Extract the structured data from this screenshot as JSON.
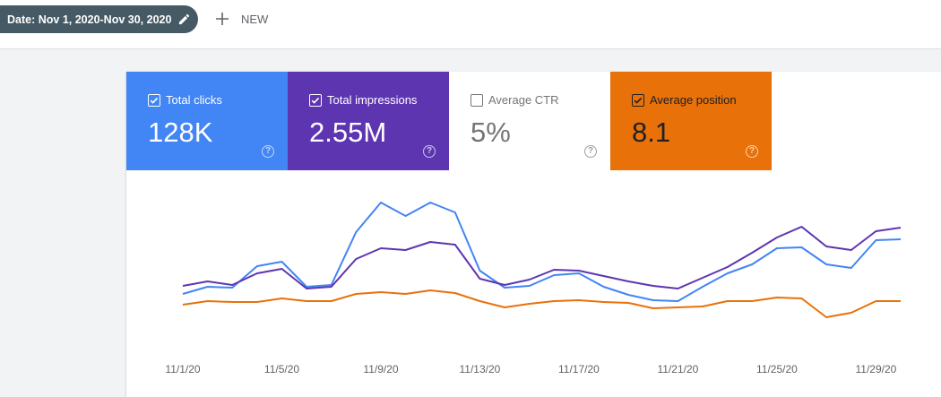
{
  "toolbar": {
    "date_filter": "Date: Nov 1, 2020-Nov 30, 2020",
    "new_label": "NEW"
  },
  "metrics": [
    {
      "id": "clicks",
      "label": "Total clicks",
      "value": "128K",
      "checked": true,
      "color": "#4285f4"
    },
    {
      "id": "impressions",
      "label": "Total impressions",
      "value": "2.55M",
      "checked": true,
      "color": "#5e35b1"
    },
    {
      "id": "ctr",
      "label": "Average CTR",
      "value": "5%",
      "checked": false,
      "color": "#ffffff"
    },
    {
      "id": "position",
      "label": "Average position",
      "value": "8.1",
      "checked": true,
      "color": "#e8710a"
    }
  ],
  "help_glyph": "?",
  "chart_data": {
    "type": "line",
    "x": [
      "11/1/20",
      "11/2/20",
      "11/3/20",
      "11/4/20",
      "11/5/20",
      "11/6/20",
      "11/7/20",
      "11/8/20",
      "11/9/20",
      "11/10/20",
      "11/11/20",
      "11/12/20",
      "11/13/20",
      "11/14/20",
      "11/15/20",
      "11/16/20",
      "11/17/20",
      "11/18/20",
      "11/19/20",
      "11/20/20",
      "11/21/20",
      "11/22/20",
      "11/23/20",
      "11/24/20",
      "11/25/20",
      "11/26/20",
      "11/27/20",
      "11/28/20",
      "11/29/20",
      "11/30/20"
    ],
    "x_tick_labels": [
      "11/1/20",
      "11/5/20",
      "11/9/20",
      "11/13/20",
      "11/17/20",
      "11/21/20",
      "11/25/20",
      "11/29/20"
    ],
    "x_tick_indices": [
      0,
      4,
      8,
      12,
      16,
      20,
      24,
      28
    ],
    "series": [
      {
        "name": "Total clicks",
        "color": "#4285f4",
        "values": [
          328,
          320,
          321,
          297,
          292,
          320,
          318,
          259,
          226,
          241,
          226,
          237,
          302,
          321,
          319,
          307,
          305,
          320,
          329,
          335,
          336,
          320,
          305,
          295,
          277,
          276,
          295,
          299,
          268,
          267
        ]
      },
      {
        "name": "Total impressions",
        "color": "#5e35b1",
        "values": [
          319,
          314,
          318,
          305,
          300,
          322,
          320,
          289,
          277,
          279,
          270,
          273,
          311,
          318,
          312,
          301,
          302,
          308,
          314,
          319,
          322,
          310,
          298,
          282,
          265,
          253,
          275,
          279,
          258,
          254
        ]
      },
      {
        "name": "Average position",
        "color": "#e8710a",
        "values": [
          340,
          336,
          337,
          337,
          333,
          336,
          336,
          328,
          326,
          328,
          324,
          327,
          336,
          343,
          339,
          336,
          335,
          337,
          338,
          344,
          343,
          342,
          336,
          336,
          332,
          333,
          354,
          349,
          336,
          336
        ]
      }
    ],
    "y_scale": "screen-relative (no printed axis)",
    "grid": false,
    "legend": "metric cards above chart"
  }
}
